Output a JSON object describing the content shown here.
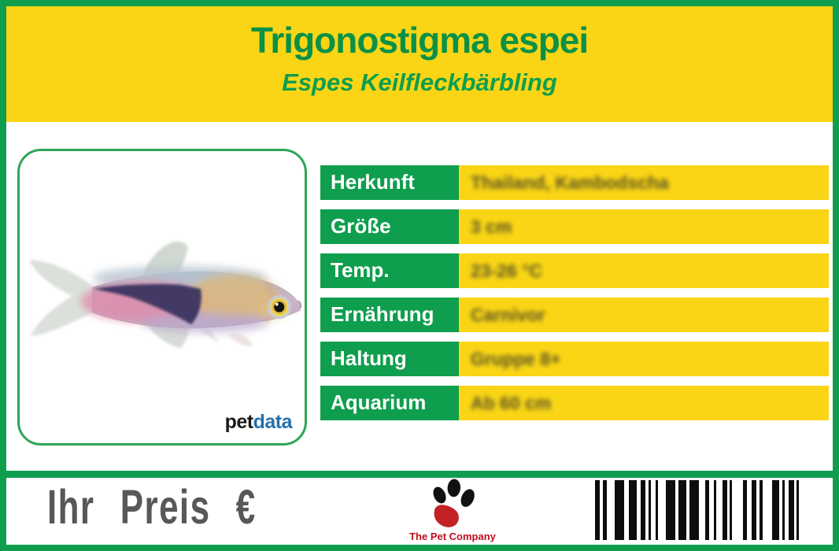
{
  "header": {
    "title": "Trigonostigma espei",
    "subtitle": "Espes Keilfleckbärbling"
  },
  "info_rows": [
    {
      "label": "Herkunft",
      "value": "Thailand, Kambodscha"
    },
    {
      "label": "Größe",
      "value": "3 cm"
    },
    {
      "label": "Temp.",
      "value": "23-26 °C"
    },
    {
      "label": "Ernährung",
      "value": "Carnivor"
    },
    {
      "label": "Haltung",
      "value": "Gruppe 8+"
    },
    {
      "label": "Aquarium",
      "value": "Ab 60 cm"
    }
  ],
  "photo_box": {
    "brand": {
      "pet": "pet",
      "data": "data"
    }
  },
  "footer": {
    "price_label": "Ihr Preis €",
    "company_name": "The Pet Company"
  },
  "colors": {
    "green": "#0F9E4E",
    "yellow": "#F9D515",
    "title_green": "#0A9147",
    "photo_border_green": "#2FA558",
    "price_gray": "#58585A",
    "company_red": "#C00D1E",
    "petdata_blue": "#2470AC",
    "barcode_black": "#0d0d0d"
  },
  "barcode": {
    "pattern": [
      [
        6,
        4
      ],
      [
        5,
        10
      ],
      [
        12,
        6
      ],
      [
        10,
        5
      ],
      [
        6,
        4
      ],
      [
        3,
        6
      ],
      [
        3,
        10
      ],
      [
        12,
        4
      ],
      [
        10,
        4
      ],
      [
        12,
        8
      ],
      [
        5,
        6
      ],
      [
        3,
        8
      ],
      [
        6,
        3
      ],
      [
        3,
        14
      ],
      [
        5,
        6
      ],
      [
        6,
        4
      ],
      [
        4,
        12
      ],
      [
        9,
        4
      ],
      [
        3,
        5
      ],
      [
        7,
        3
      ],
      [
        3,
        0
      ]
    ]
  }
}
